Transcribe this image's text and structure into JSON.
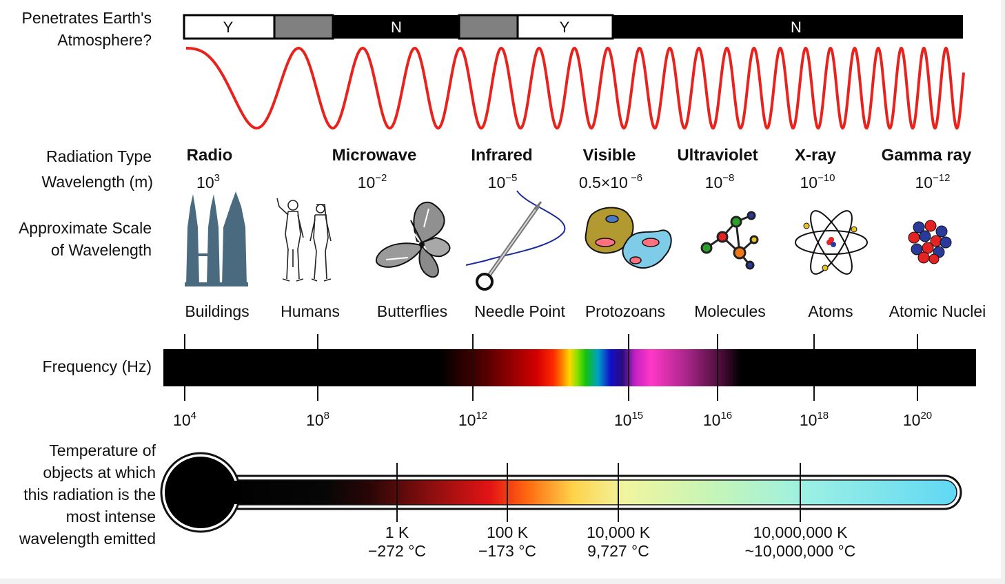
{
  "labels": {
    "penetrates": [
      "Penetrates Earth's",
      "Atmosphere?"
    ],
    "radiation_type": "Radiation Type",
    "wavelength": "Wavelength (m)",
    "approx_scale": [
      "Approximate Scale",
      "of Wavelength"
    ],
    "frequency": "Frequency (Hz)",
    "temperature": [
      "Temperature of",
      "objects at which",
      "this radiation is the",
      "most intense",
      "wavelength emitted"
    ]
  },
  "atmosphere_bar": [
    {
      "label": "Y",
      "fill": "#ffffff"
    },
    {
      "label": "",
      "fill": "#808080"
    },
    {
      "label": "N",
      "fill": "#000000"
    },
    {
      "label": "",
      "fill": "#808080"
    },
    {
      "label": "Y",
      "fill": "#ffffff"
    },
    {
      "label": "N",
      "fill": "#000000"
    }
  ],
  "radiation_types": [
    {
      "name": "Radio",
      "wl_base": "10",
      "wl_exp": "3"
    },
    {
      "name": "Microwave",
      "wl_base": "10",
      "wl_exp": "−2"
    },
    {
      "name": "Infrared",
      "wl_base": "10",
      "wl_exp": "−5"
    },
    {
      "name": "Visible",
      "wl_base": "0.5×10",
      "wl_exp": " −6"
    },
    {
      "name": "Ultraviolet",
      "wl_base": "10",
      "wl_exp": "−8"
    },
    {
      "name": "X-ray",
      "wl_base": "10",
      "wl_exp": "−10"
    },
    {
      "name": "Gamma ray",
      "wl_base": "10",
      "wl_exp": "−12"
    }
  ],
  "scale_objects": [
    {
      "name": "Buildings",
      "icon": "buildings-icon"
    },
    {
      "name": "Humans",
      "icon": "humans-icon"
    },
    {
      "name": "Butterflies",
      "icon": "butterfly-icon"
    },
    {
      "name": "Needle Point",
      "icon": "needle-icon"
    },
    {
      "name": "Protozoans",
      "icon": "protozoa-icon"
    },
    {
      "name": "Molecules",
      "icon": "molecule-icon"
    },
    {
      "name": "Atoms",
      "icon": "atom-icon"
    },
    {
      "name": "Atomic Nuclei",
      "icon": "nucleus-icon"
    }
  ],
  "frequencies": [
    {
      "base": "10",
      "exp": "4"
    },
    {
      "base": "10",
      "exp": "8"
    },
    {
      "base": "10",
      "exp": "12"
    },
    {
      "base": "10",
      "exp": "15"
    },
    {
      "base": "10",
      "exp": "16"
    },
    {
      "base": "10",
      "exp": "18"
    },
    {
      "base": "10",
      "exp": "20"
    }
  ],
  "temperatures": [
    {
      "kelvin": "1 K",
      "celsius": "−272 °C"
    },
    {
      "kelvin": "100 K",
      "celsius": "−173 °C"
    },
    {
      "kelvin": "10,000 K",
      "celsius": "9,727 °C"
    },
    {
      "kelvin": "10,000,000 K",
      "celsius": "~10,000,000 °C"
    }
  ],
  "colors": {
    "wave": "#e8221c",
    "building": "#4a6a80",
    "needle_thread": "#1a2a9a"
  }
}
